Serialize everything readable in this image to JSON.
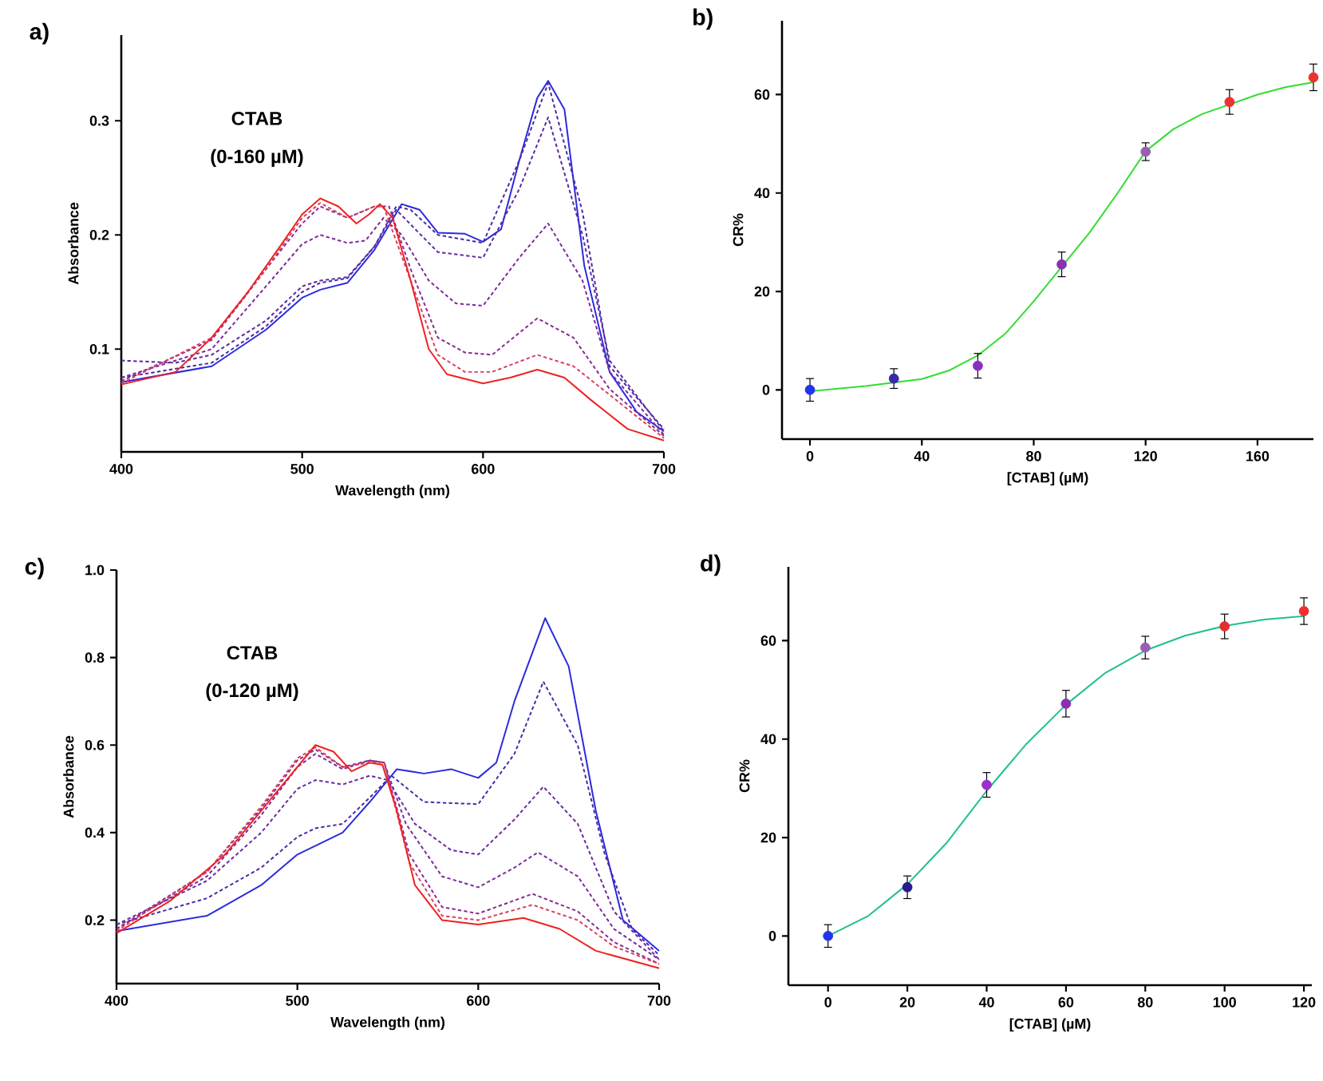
{
  "chart_data": [
    {
      "type": "line",
      "title": "a)",
      "xlabel": "Wavelength (nm)",
      "ylabel": "Absorbance",
      "annotations": [
        "CTAB",
        "(0-160 µM)"
      ],
      "xlim": [
        400,
        700
      ],
      "ylim": [
        0.01,
        0.375
      ],
      "xticks": [
        400,
        500,
        600,
        700
      ],
      "yticks": [
        0.1,
        0.2,
        0.3
      ],
      "marker": "none",
      "series": [
        {
          "color": "#2b2be0",
          "line_style": "solid",
          "x": [
            400,
            450,
            480,
            500,
            510,
            525,
            540,
            555,
            565,
            575,
            590,
            600,
            610,
            620,
            630,
            636,
            645,
            656,
            670,
            685,
            700
          ],
          "values": [
            0.071,
            0.085,
            0.117,
            0.145,
            0.152,
            0.158,
            0.187,
            0.227,
            0.222,
            0.202,
            0.201,
            0.194,
            0.205,
            0.265,
            0.32,
            0.335,
            0.31,
            0.173,
            0.08,
            0.045,
            0.028
          ]
        },
        {
          "color": "#4a2aa8",
          "line_style": "dashed",
          "x": [
            400,
            450,
            480,
            500,
            510,
            525,
            540,
            552,
            560,
            575,
            600,
            620,
            636,
            655,
            670,
            700
          ],
          "values": [
            0.075,
            0.088,
            0.12,
            0.15,
            0.158,
            0.162,
            0.19,
            0.225,
            0.222,
            0.2,
            0.193,
            0.265,
            0.333,
            0.22,
            0.085,
            0.03
          ]
        },
        {
          "color": "#5a2aa0",
          "line_style": "dashed",
          "x": [
            400,
            430,
            450,
            480,
            500,
            510,
            525,
            540,
            552,
            575,
            600,
            620,
            636,
            655,
            670,
            700
          ],
          "values": [
            0.09,
            0.088,
            0.095,
            0.125,
            0.155,
            0.16,
            0.163,
            0.19,
            0.222,
            0.185,
            0.18,
            0.24,
            0.303,
            0.2,
            0.09,
            0.028
          ]
        },
        {
          "color": "#7a2a9c",
          "line_style": "dashed",
          "x": [
            400,
            450,
            480,
            500,
            510,
            525,
            535,
            545,
            555,
            570,
            585,
            600,
            620,
            636,
            655,
            670,
            700
          ],
          "values": [
            0.075,
            0.1,
            0.155,
            0.192,
            0.2,
            0.193,
            0.195,
            0.215,
            0.2,
            0.16,
            0.14,
            0.138,
            0.18,
            0.21,
            0.16,
            0.08,
            0.025
          ]
        },
        {
          "color": "#8a2a90",
          "line_style": "dashed",
          "x": [
            400,
            450,
            480,
            500,
            510,
            525,
            540,
            548,
            560,
            575,
            590,
            605,
            630,
            650,
            670,
            700
          ],
          "values": [
            0.072,
            0.108,
            0.17,
            0.21,
            0.225,
            0.215,
            0.225,
            0.225,
            0.17,
            0.11,
            0.097,
            0.095,
            0.127,
            0.11,
            0.065,
            0.024
          ]
        },
        {
          "color": "#d84060",
          "line_style": "dashed",
          "x": [
            400,
            450,
            480,
            500,
            510,
            525,
            540,
            545,
            560,
            575,
            590,
            605,
            630,
            650,
            670,
            700
          ],
          "values": [
            0.07,
            0.11,
            0.17,
            0.215,
            0.228,
            0.215,
            0.225,
            0.225,
            0.16,
            0.095,
            0.08,
            0.08,
            0.095,
            0.085,
            0.06,
            0.022
          ]
        },
        {
          "color": "#ee2222",
          "line_style": "solid",
          "x": [
            400,
            430,
            450,
            470,
            490,
            500,
            510,
            520,
            530,
            537,
            543,
            550,
            560,
            570,
            580,
            600,
            615,
            630,
            645,
            660,
            680,
            700
          ],
          "values": [
            0.069,
            0.08,
            0.11,
            0.15,
            0.195,
            0.218,
            0.232,
            0.225,
            0.21,
            0.218,
            0.227,
            0.215,
            0.16,
            0.1,
            0.078,
            0.07,
            0.075,
            0.082,
            0.075,
            0.055,
            0.03,
            0.02
          ]
        }
      ]
    },
    {
      "type": "scatter",
      "title": "b)",
      "xlabel": "[CTAB] (µM)",
      "ylabel": "CR%",
      "xlim": [
        -10,
        180
      ],
      "ylim": [
        -10,
        75
      ],
      "xticks": [
        0,
        40,
        80,
        120,
        160
      ],
      "yticks": [
        0,
        20,
        40,
        60
      ],
      "series": [
        {
          "type": "line",
          "color": "#33dd33",
          "line_style": "solid",
          "marker": "none",
          "x": [
            0,
            20,
            40,
            50,
            60,
            70,
            80,
            90,
            100,
            110,
            120,
            130,
            140,
            150,
            160,
            170,
            180
          ],
          "values": [
            -0.3,
            0.8,
            2.2,
            4,
            7,
            11.5,
            18,
            25,
            32,
            40,
            48.5,
            53,
            56,
            58,
            60,
            61.5,
            62.5
          ]
        },
        {
          "type": "scatter",
          "marker": "circle",
          "x": [
            0,
            30,
            60,
            90,
            120,
            150,
            180
          ],
          "values": [
            0,
            2.3,
            4.9,
            25.5,
            48.4,
            58.5,
            63.5
          ],
          "errors": [
            2.3,
            2,
            2.5,
            2.5,
            1.8,
            2.5,
            2.7
          ],
          "colors": [
            "#2233ee",
            "#3a2aa8",
            "#8a30c0",
            "#8a30b0",
            "#9a60b0",
            "#ee3030",
            "#ee3030"
          ]
        }
      ]
    },
    {
      "type": "line",
      "title": "c)",
      "xlabel": "Wavelength (nm)",
      "ylabel": "Absorbance",
      "annotations": [
        "CTAB",
        "(0-120 µM)"
      ],
      "xlim": [
        400,
        700
      ],
      "ylim": [
        0.055,
        1.0
      ],
      "xticks": [
        400,
        500,
        600,
        700
      ],
      "yticks": [
        0.2,
        0.4,
        0.6,
        0.8,
        {
          "value": 1.0,
          "label": "1.0"
        }
      ],
      "marker": "none",
      "series": [
        {
          "color": "#2b2be0",
          "line_style": "solid",
          "x": [
            400,
            450,
            480,
            500,
            510,
            525,
            540,
            555,
            570,
            585,
            600,
            610,
            620,
            637,
            650,
            665,
            680,
            700
          ],
          "values": [
            0.175,
            0.21,
            0.28,
            0.35,
            0.37,
            0.4,
            0.47,
            0.545,
            0.535,
            0.545,
            0.525,
            0.56,
            0.7,
            0.89,
            0.78,
            0.45,
            0.2,
            0.13
          ]
        },
        {
          "color": "#4a2aa8",
          "line_style": "dashed",
          "x": [
            400,
            450,
            480,
            500,
            510,
            525,
            540,
            552,
            570,
            600,
            620,
            636,
            655,
            670,
            685,
            700
          ],
          "values": [
            0.19,
            0.25,
            0.32,
            0.39,
            0.41,
            0.42,
            0.48,
            0.53,
            0.47,
            0.465,
            0.58,
            0.745,
            0.6,
            0.35,
            0.18,
            0.12
          ]
        },
        {
          "color": "#6a2aa0",
          "line_style": "dashed",
          "x": [
            400,
            450,
            480,
            500,
            510,
            525,
            540,
            550,
            565,
            585,
            600,
            620,
            636,
            655,
            675,
            700
          ],
          "values": [
            0.19,
            0.29,
            0.4,
            0.5,
            0.52,
            0.51,
            0.53,
            0.52,
            0.42,
            0.36,
            0.35,
            0.43,
            0.505,
            0.42,
            0.22,
            0.11
          ]
        },
        {
          "color": "#7a2a9c",
          "line_style": "dashed",
          "x": [
            400,
            450,
            480,
            500,
            510,
            525,
            540,
            548,
            560,
            580,
            600,
            620,
            633,
            655,
            675,
            700
          ],
          "values": [
            0.18,
            0.3,
            0.44,
            0.55,
            0.58,
            0.545,
            0.565,
            0.56,
            0.42,
            0.3,
            0.275,
            0.32,
            0.355,
            0.3,
            0.18,
            0.11
          ]
        },
        {
          "color": "#8a2a90",
          "line_style": "dashed",
          "x": [
            400,
            450,
            480,
            500,
            510,
            525,
            540,
            548,
            562,
            580,
            600,
            630,
            655,
            675,
            700
          ],
          "values": [
            0.18,
            0.31,
            0.455,
            0.565,
            0.59,
            0.55,
            0.565,
            0.56,
            0.35,
            0.23,
            0.215,
            0.26,
            0.22,
            0.15,
            0.1
          ]
        },
        {
          "color": "#d84060",
          "line_style": "dashed",
          "x": [
            400,
            450,
            480,
            500,
            510,
            525,
            540,
            548,
            562,
            580,
            600,
            630,
            655,
            675,
            700
          ],
          "values": [
            0.175,
            0.31,
            0.46,
            0.57,
            0.595,
            0.55,
            0.56,
            0.56,
            0.33,
            0.21,
            0.2,
            0.235,
            0.2,
            0.14,
            0.1
          ]
        },
        {
          "color": "#ee2222",
          "line_style": "solid",
          "x": [
            400,
            430,
            460,
            490,
            510,
            520,
            530,
            540,
            547,
            555,
            565,
            580,
            600,
            625,
            645,
            665,
            700
          ],
          "values": [
            0.17,
            0.245,
            0.35,
            0.5,
            0.6,
            0.585,
            0.54,
            0.56,
            0.555,
            0.45,
            0.28,
            0.2,
            0.19,
            0.205,
            0.18,
            0.13,
            0.09
          ]
        }
      ]
    },
    {
      "type": "scatter",
      "title": "d)",
      "xlabel": "[CTAB] (µM)",
      "ylabel": "CR%",
      "xlim": [
        -10,
        122
      ],
      "ylim": [
        -10,
        75
      ],
      "xticks": [
        0,
        20,
        40,
        60,
        80,
        100,
        120
      ],
      "yticks": [
        0,
        20,
        40,
        60
      ],
      "series": [
        {
          "type": "line",
          "color": "#20c090",
          "line_style": "solid",
          "marker": "none",
          "x": [
            0,
            10,
            20,
            30,
            40,
            50,
            60,
            70,
            80,
            90,
            100,
            110,
            120
          ],
          "values": [
            0,
            4,
            10.5,
            19,
            29.5,
            39,
            47,
            53.5,
            58,
            61,
            63,
            64.3,
            65
          ]
        },
        {
          "type": "scatter",
          "marker": "circle",
          "x": [
            0,
            20,
            40,
            60,
            80,
            100,
            120
          ],
          "values": [
            0,
            9.9,
            30.7,
            47.2,
            58.6,
            62.9,
            66
          ],
          "errors": [
            2.3,
            2.3,
            2.5,
            2.7,
            2.3,
            2.5,
            2.7
          ],
          "colors": [
            "#2233ee",
            "#2a1a90",
            "#9a30c8",
            "#8a30b0",
            "#9a60b0",
            "#e03030",
            "#ee3030"
          ]
        }
      ]
    }
  ]
}
